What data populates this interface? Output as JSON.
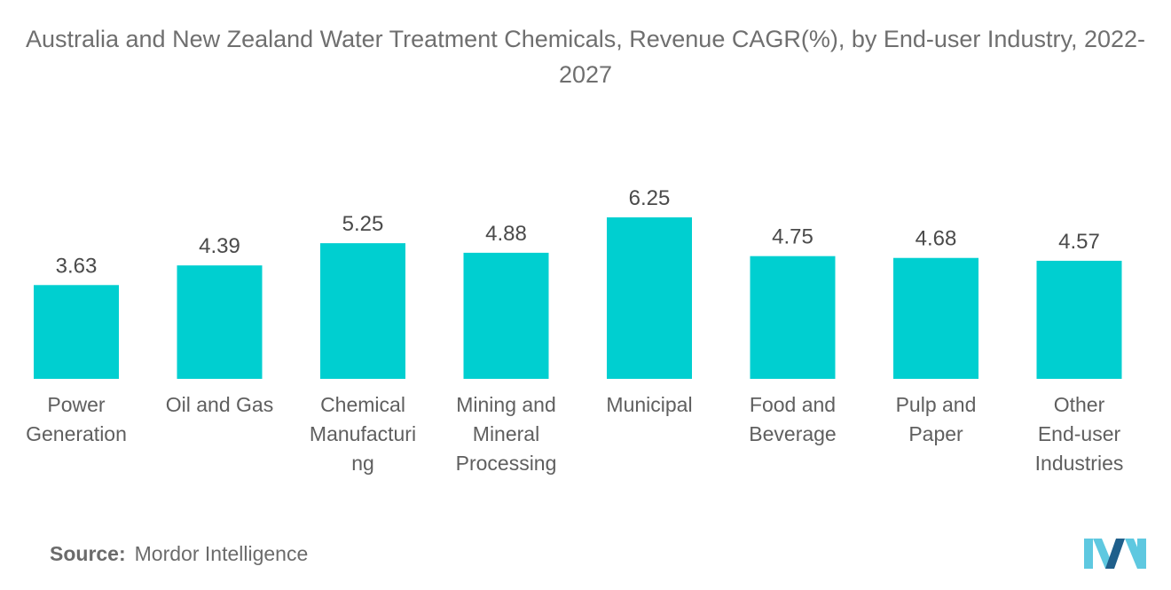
{
  "title": "Australia and New Zealand Water Treatment Chemicals, Revenue CAGR(%), by End-user Industry, 2022-2027",
  "source_label": "Source:",
  "source_value": "Mordor Intelligence",
  "colors": {
    "bar": "#00cfd0",
    "logo_light": "#5ec8e0",
    "logo_dark": "#1f5f8b"
  },
  "chart_data": {
    "type": "bar",
    "title": "Australia and New Zealand Water Treatment Chemicals, Revenue CAGR(%), by End-user Industry, 2022-2027",
    "categories": [
      "Power Generation",
      "Oil and Gas",
      "Chemical Manufacturing",
      "Mining and Mineral Processing",
      "Municipal",
      "Food and Beverage",
      "Pulp and Paper",
      "Other End-user Industries"
    ],
    "category_label_lines": [
      [
        "Power",
        "Generation"
      ],
      [
        "Oil and Gas"
      ],
      [
        "Chemical",
        "Manufacturi",
        "ng"
      ],
      [
        "Mining and",
        "Mineral",
        "Processing"
      ],
      [
        "Municipal"
      ],
      [
        "Food and",
        "Beverage"
      ],
      [
        "Pulp and",
        "Paper"
      ],
      [
        "Other",
        "End-user",
        "Industries"
      ]
    ],
    "values": [
      3.63,
      4.39,
      5.25,
      4.88,
      6.25,
      4.75,
      4.68,
      4.57
    ],
    "value_labels": [
      "3.63",
      "4.39",
      "5.25",
      "4.88",
      "6.25",
      "4.75",
      "4.68",
      "4.57"
    ],
    "xlabel": "",
    "ylabel": "",
    "ylim": [
      0,
      6.25
    ],
    "grid": false,
    "legend": "none"
  }
}
